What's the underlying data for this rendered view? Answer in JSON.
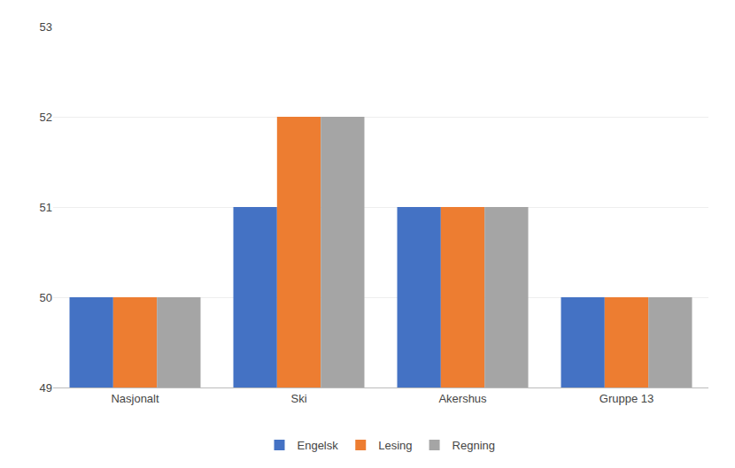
{
  "chart_data": {
    "type": "bar",
    "categories": [
      "Nasjonalt",
      "Ski",
      "Akershus",
      "Gruppe 13"
    ],
    "series": [
      {
        "name": "Engelsk",
        "color": "#4472C4",
        "values": [
          50,
          51,
          51,
          50
        ]
      },
      {
        "name": "Lesing",
        "color": "#ED7D31",
        "values": [
          50,
          52,
          51,
          50
        ]
      },
      {
        "name": "Regning",
        "color": "#A5A5A5",
        "values": [
          50,
          52,
          51,
          50
        ]
      }
    ],
    "ylim": [
      49,
      53
    ],
    "yticks": [
      49,
      50,
      51,
      52,
      53
    ],
    "grid": true,
    "legend": "bottom"
  }
}
